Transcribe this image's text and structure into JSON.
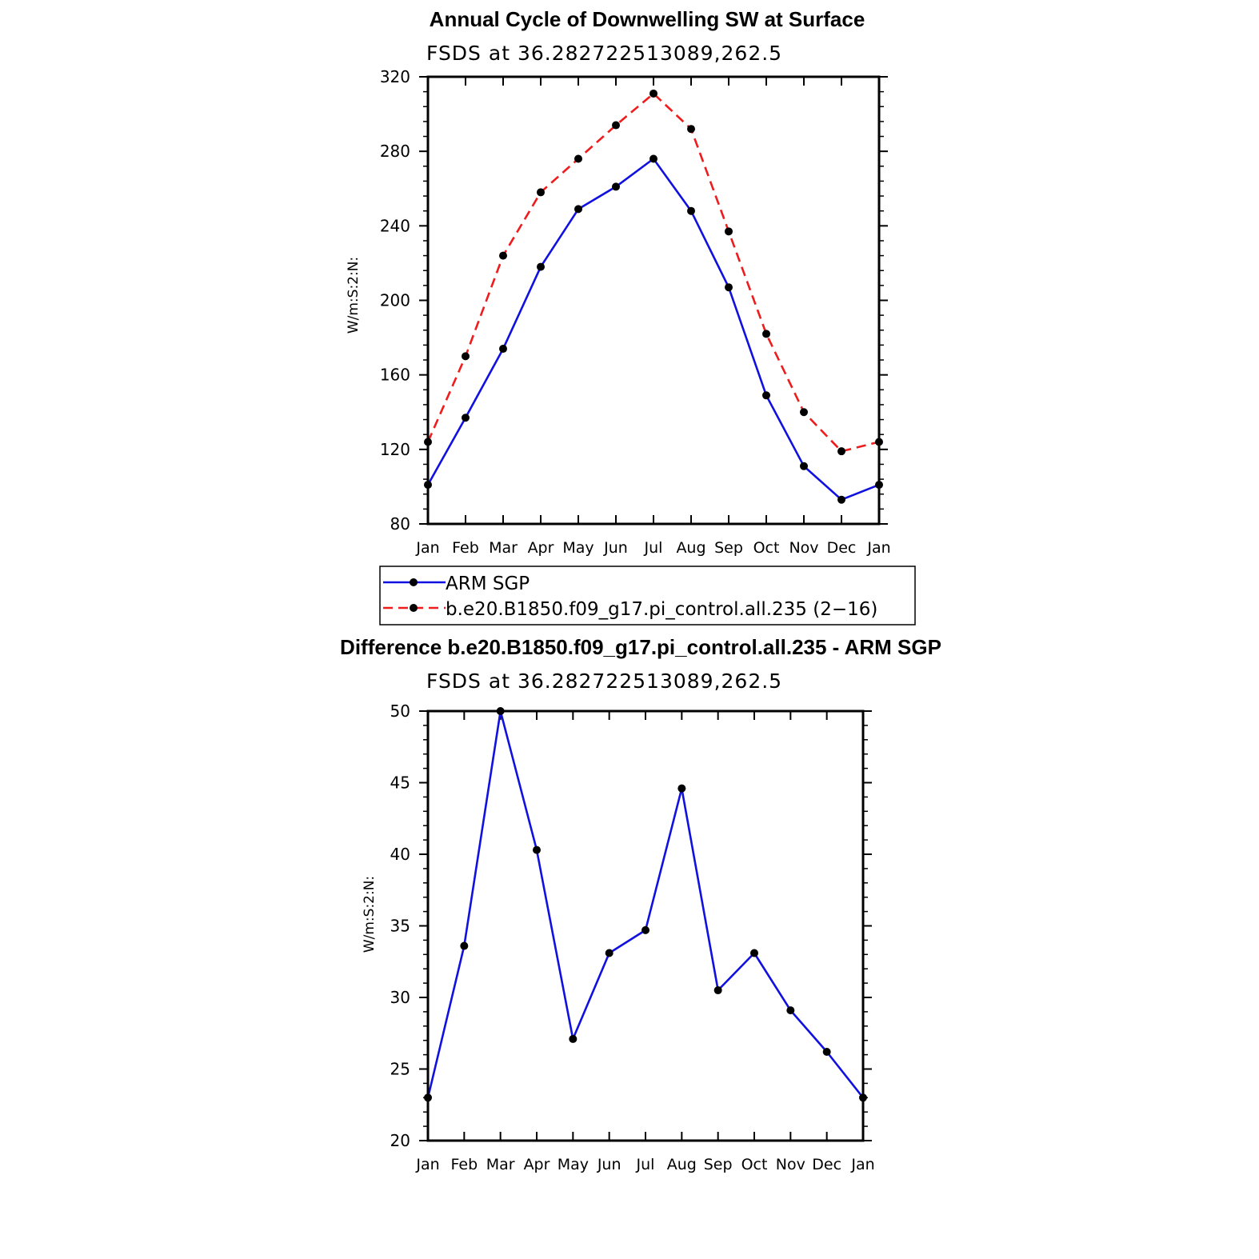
{
  "chart_data": [
    {
      "type": "line",
      "title": "Annual Cycle of Downwelling SW at Surface",
      "subtitle": "FSDS at 36.282722513089,262.5",
      "ylabel": "W/m:S:2:N:",
      "xlabel": "",
      "categories": [
        "Jan",
        "Feb",
        "Mar",
        "Apr",
        "May",
        "Jun",
        "Jul",
        "Aug",
        "Sep",
        "Oct",
        "Nov",
        "Dec",
        "Jan"
      ],
      "ylim": [
        80,
        320
      ],
      "yticks": [
        80,
        120,
        160,
        200,
        240,
        280,
        320
      ],
      "grid": false,
      "legend_position": "below",
      "series": [
        {
          "name": "ARM SGP",
          "color": "#1010e0",
          "dash": "solid",
          "values": [
            101,
            137,
            174,
            218,
            249,
            261,
            276,
            248,
            207,
            149,
            111,
            93,
            101
          ]
        },
        {
          "name": "b.e20.B1850.f09_g17.pi_control.all.235 (2−16)",
          "color": "#ee1c1c",
          "dash": "dashed",
          "values": [
            124,
            170,
            224,
            258,
            276,
            294,
            311,
            292,
            237,
            182,
            140,
            119,
            124
          ]
        }
      ]
    },
    {
      "type": "line",
      "title": "Difference b.e20.B1850.f09_g17.pi_control.all.235 - ARM SGP",
      "subtitle": "FSDS at 36.282722513089,262.5",
      "ylabel": "W/m:S:2:N:",
      "xlabel": "",
      "categories": [
        "Jan",
        "Feb",
        "Mar",
        "Apr",
        "May",
        "Jun",
        "Jul",
        "Aug",
        "Sep",
        "Oct",
        "Nov",
        "Dec",
        "Jan"
      ],
      "ylim": [
        20,
        50
      ],
      "yticks": [
        20,
        25,
        30,
        35,
        40,
        45,
        50
      ],
      "grid": false,
      "series": [
        {
          "color": "#1010e0",
          "dash": "solid",
          "values": [
            23.0,
            33.6,
            50.0,
            40.3,
            27.1,
            33.1,
            34.7,
            44.6,
            30.5,
            33.1,
            29.1,
            26.2,
            23.0
          ]
        }
      ]
    }
  ]
}
